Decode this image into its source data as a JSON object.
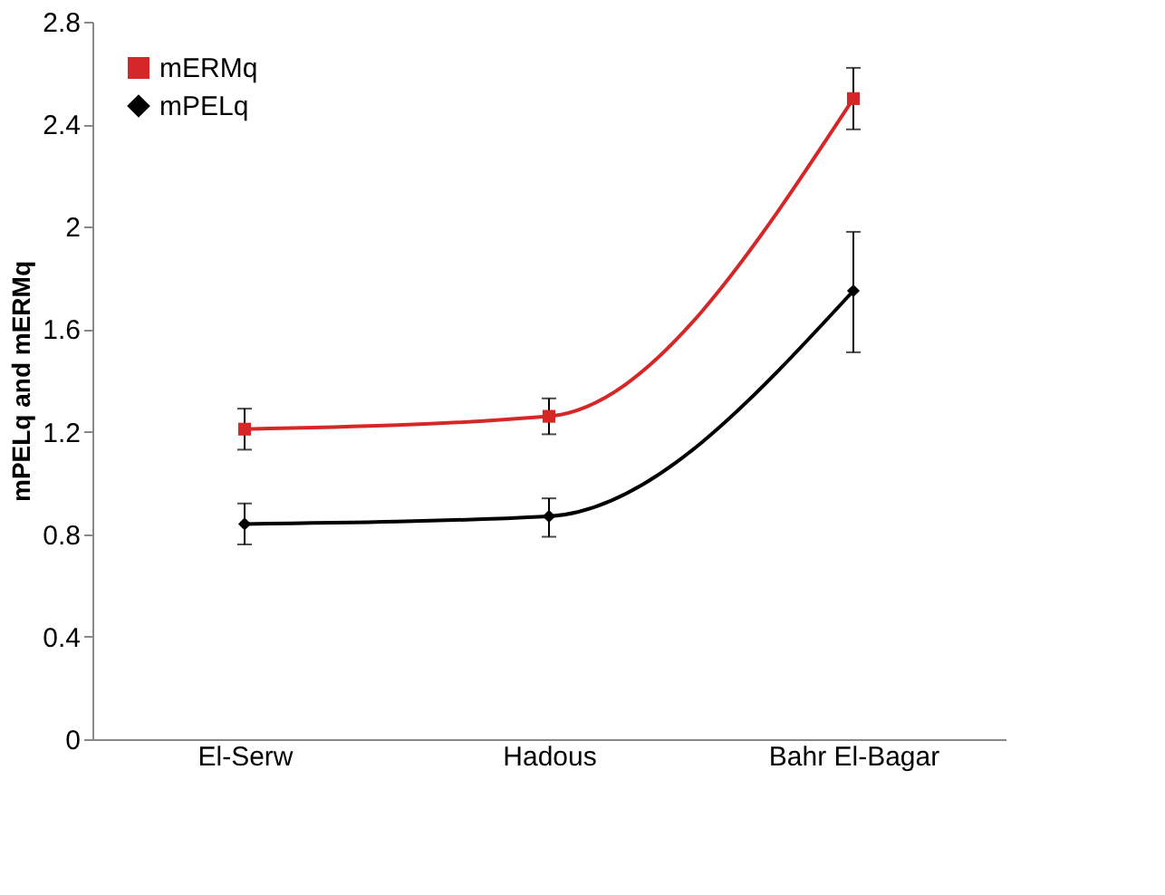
{
  "chart_data": {
    "type": "line",
    "ylabel": "mPELq and mERMq",
    "categories": [
      "El-Serw",
      "Hadous",
      "Bahr El-Bagar"
    ],
    "series": [
      {
        "name": "mERMq",
        "color": "#d62728",
        "marker": "square",
        "values": [
          1.21,
          1.26,
          2.5
        ],
        "errors": [
          [
            1.13,
            1.29
          ],
          [
            1.19,
            1.33
          ],
          [
            2.38,
            2.62
          ]
        ]
      },
      {
        "name": "mPELq",
        "color": "#000000",
        "marker": "diamond",
        "values": [
          0.84,
          0.87,
          1.75
        ],
        "errors": [
          [
            0.76,
            0.92
          ],
          [
            0.79,
            0.94
          ],
          [
            1.51,
            1.98
          ]
        ]
      }
    ],
    "ylim": [
      0,
      2.8
    ],
    "yticks": [
      0,
      0.4,
      0.8,
      1.2,
      1.6,
      2,
      2.4,
      2.8
    ],
    "grid": false,
    "legend": "top left",
    "line_style": "solid"
  }
}
